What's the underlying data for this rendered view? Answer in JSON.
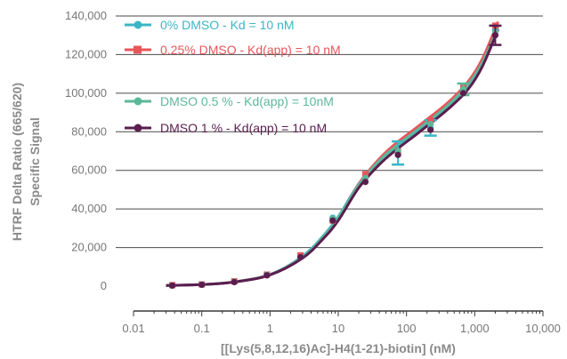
{
  "chart_data": {
    "type": "scatter",
    "xlabel": "[[Lys(5,8,12,16)Ac]-H4(1-21)-biotin] (nM)",
    "ylabel_lines": [
      "HTRF Delta Ratio (665/620)",
      "Specific Signal"
    ],
    "x_scale": "log",
    "xlim": [
      0.01,
      10000
    ],
    "ylim": [
      0,
      140000
    ],
    "x_ticks": [
      0.01,
      0.1,
      1,
      10,
      100,
      1000,
      10000
    ],
    "x_tick_labels": [
      "0.01",
      "0.1",
      "1",
      "10",
      "100",
      "1,000",
      "10,000"
    ],
    "y_ticks": [
      0,
      20000,
      40000,
      60000,
      80000,
      100000,
      120000,
      140000
    ],
    "y_tick_labels": [
      "0",
      "20,000",
      "40,000",
      "60,000",
      "80,000",
      "100,000",
      "120,000",
      "140,000"
    ],
    "grid": "horizontal",
    "legend_position": "top-left",
    "x": [
      0.037,
      0.1,
      0.3,
      0.9,
      2.8,
      8.3,
      25,
      75,
      225,
      680,
      2000
    ],
    "series": [
      {
        "name": "0% DMSO - Kd = 10 nM",
        "color": "#3ab5c6",
        "marker": "circle",
        "values": [
          300,
          700,
          2200,
          5800,
          15500,
          35500,
          56000,
          69000,
          82000,
          101000,
          133000
        ],
        "errors": [
          0,
          0,
          0,
          0,
          0,
          0,
          0,
          6000,
          4000,
          0,
          0
        ]
      },
      {
        "name": "0.25% DMSO - Kd(app) = 10 nM",
        "color": "#e8555a",
        "marker": "square",
        "values": [
          500,
          900,
          2500,
          6000,
          16000,
          34000,
          58000,
          70000,
          86000,
          103000,
          135000
        ],
        "errors": [
          0,
          0,
          0,
          0,
          0,
          0,
          0,
          0,
          0,
          0,
          0
        ]
      },
      {
        "name": "DMSO 0.5 % - Kd(app) = 10nM",
        "color": "#5cb89a",
        "marker": "circle",
        "values": [
          300,
          800,
          2300,
          5900,
          15000,
          35000,
          56000,
          70000,
          84000,
          102000,
          132000
        ],
        "errors": [
          0,
          0,
          0,
          0,
          0,
          0,
          0,
          0,
          0,
          3000,
          0
        ]
      },
      {
        "name": "DMSO 1 % - Kd(app) = 10 nM",
        "color": "#5b1d4f",
        "marker": "circle",
        "values": [
          300,
          700,
          2100,
          5600,
          15000,
          34000,
          54000,
          68000,
          81000,
          100000,
          130000
        ],
        "errors": [
          0,
          0,
          0,
          0,
          0,
          0,
          0,
          0,
          0,
          0,
          5000
        ]
      }
    ],
    "fit_curves": [
      {
        "series": 0,
        "x": [
          0.03,
          0.1,
          0.3,
          1,
          3,
          6,
          10,
          20,
          40,
          70,
          150,
          400,
          800,
          1300,
          2200
        ],
        "y": [
          300,
          800,
          2200,
          6000,
          15500,
          26000,
          36000,
          53000,
          65000,
          72000,
          81000,
          93000,
          104000,
          116000,
          135000
        ]
      },
      {
        "series": 1,
        "x": [
          0.03,
          0.1,
          0.3,
          1,
          3,
          6,
          10,
          20,
          40,
          70,
          150,
          400,
          800,
          1300,
          2200
        ],
        "y": [
          300,
          800,
          2200,
          6000,
          15000,
          25000,
          35000,
          53000,
          66000,
          74000,
          83000,
          95000,
          106000,
          118000,
          137000
        ]
      },
      {
        "series": 2,
        "x": [
          0.03,
          0.1,
          0.3,
          1,
          3,
          6,
          10,
          20,
          40,
          70,
          150,
          400,
          800,
          1300,
          2200
        ],
        "y": [
          300,
          800,
          2200,
          6000,
          15000,
          25500,
          35500,
          52500,
          65000,
          72500,
          81500,
          93500,
          104500,
          116000,
          134000
        ]
      },
      {
        "series": 3,
        "x": [
          0.03,
          0.1,
          0.3,
          1,
          3,
          6,
          10,
          20,
          40,
          70,
          150,
          400,
          800,
          1300,
          2200
        ],
        "y": [
          300,
          800,
          2100,
          5800,
          14500,
          24500,
          34000,
          51000,
          63000,
          70500,
          79500,
          91500,
          102000,
          114000,
          133000
        ]
      }
    ]
  }
}
